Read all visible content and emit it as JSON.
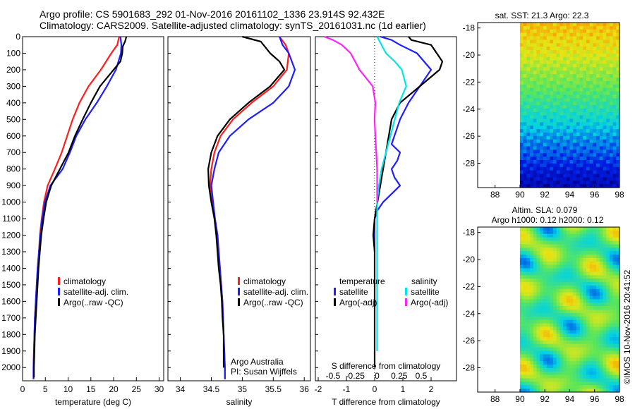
{
  "title": {
    "line1": "Argo profile: CS 5901683_292 01-Nov-2016 20161102_1336 23.914S 92.432E",
    "line2": "Climatology: CARS2009. Satellite-adjusted climatology: synTS_20161031.nc (1d earlier)"
  },
  "colors": {
    "climatology": "#ff1e1e",
    "satellite": "#1e1eff",
    "argo": "#000000",
    "sat_sal": "#00e5e5",
    "argo_sal": "#ff22ff"
  },
  "depth_ticks": [
    0,
    100,
    200,
    300,
    400,
    500,
    600,
    700,
    800,
    900,
    1000,
    1100,
    1200,
    1300,
    1400,
    1500,
    1600,
    1700,
    1800,
    1900,
    2000
  ],
  "chart_data": [
    {
      "type": "line",
      "xlabel": "temperature (deg C)",
      "xlim": [
        0,
        31
      ],
      "ylim": [
        2080,
        0
      ],
      "y_reversed": true,
      "xticks": [
        0,
        5,
        10,
        15,
        20,
        25,
        30
      ],
      "legend": [
        "climatology",
        "satellite-adj. clim.",
        "Argo(..raw -QC)"
      ],
      "series": [
        {
          "name": "climatology",
          "color_key": "climatology",
          "x": [
            21.2,
            20.8,
            19.5,
            17.2,
            14.5,
            12.5,
            11.0,
            9.8,
            8.6,
            7.1,
            5.5,
            4.7,
            4.2,
            3.8,
            3.6,
            3.3,
            3.1,
            2.9,
            2.7,
            2.6,
            2.5,
            2.4,
            2.4
          ],
          "y": [
            0,
            50,
            100,
            200,
            300,
            400,
            500,
            600,
            700,
            800,
            900,
            1000,
            1100,
            1200,
            1300,
            1400,
            1500,
            1600,
            1700,
            1800,
            1900,
            2000,
            2070
          ]
        },
        {
          "name": "satellite-adj. clim.",
          "color_key": "satellite",
          "x": [
            21.5,
            21.7,
            21.6,
            20.5,
            18.5,
            16.3,
            13.8,
            11.8,
            10.4,
            8.8,
            6.1,
            4.9,
            4.3,
            3.9,
            3.6,
            3.3,
            3.1,
            2.9,
            2.7,
            2.6,
            2.5,
            2.4,
            2.4
          ],
          "y": [
            0,
            50,
            100,
            200,
            300,
            400,
            500,
            600,
            700,
            800,
            900,
            1000,
            1100,
            1200,
            1300,
            1400,
            1500,
            1600,
            1700,
            1800,
            1900,
            2000,
            2070
          ]
        },
        {
          "name": "Argo(..raw -QC)",
          "color_key": "argo",
          "x": [
            22.8,
            22.5,
            22.0,
            21.9,
            21.5,
            20.0,
            17.0,
            15.0,
            13.2,
            11.5,
            10.1,
            8.2,
            6.3,
            5.2,
            4.6,
            4.1,
            3.8,
            3.5,
            3.3,
            3.1,
            2.9,
            2.7,
            2.6,
            2.5,
            2.5
          ],
          "y": [
            0,
            30,
            60,
            100,
            150,
            200,
            300,
            400,
            500,
            600,
            700,
            800,
            900,
            1000,
            1100,
            1200,
            1300,
            1400,
            1500,
            1600,
            1700,
            1800,
            1900,
            2000,
            2060
          ]
        }
      ]
    },
    {
      "type": "line",
      "xlabel": "salinity",
      "xlim": [
        33.8,
        36.1
      ],
      "ylim": [
        2080,
        0
      ],
      "y_reversed": true,
      "xticks": [
        34,
        34.5,
        35,
        35.5,
        36
      ],
      "legend": [
        "climatology",
        "satellite-adj. clim.",
        "Argo(..raw -QC)"
      ],
      "annotation": [
        "Argo Australia",
        "PI: Susan Wijffels"
      ],
      "series": [
        {
          "name": "climatology",
          "color_key": "climatology",
          "x": [
            35.6,
            35.7,
            35.75,
            35.72,
            35.5,
            35.15,
            34.85,
            34.65,
            34.55,
            34.5,
            34.48,
            34.52,
            34.56,
            34.6,
            34.62,
            34.64,
            34.66,
            34.68,
            34.69,
            34.7,
            34.71,
            34.72,
            34.72
          ],
          "y": [
            0,
            50,
            100,
            200,
            300,
            400,
            500,
            600,
            700,
            800,
            900,
            1000,
            1100,
            1200,
            1300,
            1400,
            1500,
            1600,
            1700,
            1800,
            1900,
            2000,
            2070
          ]
        },
        {
          "name": "satellite-adj. clim.",
          "color_key": "satellite",
          "x": [
            35.6,
            35.65,
            35.75,
            35.85,
            35.75,
            35.5,
            35.1,
            34.8,
            34.62,
            34.55,
            34.5,
            34.53,
            34.56,
            34.6,
            34.62,
            34.64,
            34.66,
            34.68,
            34.69,
            34.7,
            34.71,
            34.72,
            34.72
          ],
          "y": [
            0,
            50,
            100,
            200,
            300,
            400,
            500,
            600,
            700,
            800,
            900,
            1000,
            1100,
            1200,
            1300,
            1400,
            1500,
            1600,
            1700,
            1800,
            1900,
            2000,
            2070
          ]
        },
        {
          "name": "Argo(..raw -QC)",
          "color_key": "argo",
          "x": [
            35.0,
            35.3,
            35.45,
            35.6,
            35.68,
            35.45,
            35.1,
            34.8,
            34.6,
            34.5,
            34.45,
            34.46,
            34.5,
            34.55,
            34.58,
            34.6,
            34.62,
            34.65,
            34.67,
            34.68,
            34.7,
            34.7,
            34.7
          ],
          "y": [
            0,
            30,
            100,
            150,
            200,
            300,
            400,
            500,
            600,
            700,
            800,
            900,
            1000,
            1100,
            1200,
            1300,
            1400,
            1500,
            1600,
            1700,
            1800,
            1900,
            2000
          ]
        }
      ]
    },
    {
      "type": "line",
      "xlabel": "T difference from climatology",
      "xlabel_top": "S difference from climatology",
      "xlim_T": [
        -2.1,
        2.9
      ],
      "xticks_T": [
        -2,
        -1,
        0,
        1,
        2
      ],
      "xlim_S": [
        -0.7,
        0.9
      ],
      "xticks_S": [
        -0.5,
        -0.25,
        0,
        0.25,
        0.5
      ],
      "xticklabels_S": [
        "-0.5",
        "-0.25",
        "0",
        "0.25",
        "0.5"
      ],
      "ylim": [
        2080,
        0
      ],
      "y_reversed": true,
      "legend_T": {
        "heading": "temperature",
        "items": [
          "satellite",
          "Argo(-adj)"
        ]
      },
      "legend_S": {
        "heading": "salinity",
        "items": [
          "satellite",
          "Argo(-adj)"
        ]
      },
      "series": [
        {
          "name": "satellite",
          "group": "temperature",
          "axis": "T",
          "color_key": "satellite",
          "x": [
            0.2,
            0.6,
            0.9,
            1.5,
            2.0,
            1.6,
            1.2,
            0.9,
            0.7,
            0.6,
            0.9,
            0.8,
            0.6,
            0.7,
            0.9,
            0.6,
            0.3,
            0.1,
            0,
            0,
            0
          ],
          "y": [
            0,
            20,
            50,
            100,
            200,
            300,
            400,
            500,
            600,
            650,
            700,
            750,
            800,
            850,
            900,
            950,
            1000,
            1050,
            1100,
            1200,
            1300
          ]
        },
        {
          "name": "Argo(-adj)",
          "group": "temperature",
          "axis": "T",
          "color_key": "argo",
          "x": [
            1.2,
            1.3,
            2.0,
            2.4,
            2.3,
            1.6,
            0.9,
            0.6,
            0.5,
            0.4,
            0.3,
            0.2,
            0.1,
            0,
            -0.05,
            0,
            0,
            0,
            0,
            0
          ],
          "y": [
            0,
            20,
            50,
            150,
            200,
            300,
            400,
            500,
            600,
            700,
            800,
            900,
            1000,
            1100,
            1200,
            1300,
            1400,
            1600,
            1800,
            2000
          ]
        },
        {
          "name": "satellite",
          "group": "salinity",
          "axis": "S",
          "color_key": "sat_sal",
          "x": [
            0,
            0.1,
            0.2,
            0.28,
            0.33,
            0.25,
            0.2,
            0.15,
            0.1,
            0.05,
            0.02,
            0,
            0,
            0,
            0,
            0
          ],
          "y": [
            0,
            100,
            150,
            200,
            300,
            400,
            500,
            600,
            700,
            800,
            900,
            1000,
            1100,
            1200,
            1500,
            1900
          ]
        },
        {
          "name": "Argo(-adj)",
          "group": "salinity",
          "axis": "S",
          "color_key": "argo_sal",
          "x": [
            -0.6,
            -0.5,
            -0.4,
            -0.3,
            -0.25,
            -0.2,
            -0.05,
            -0.02,
            -0.03,
            -0.02,
            -0.01,
            0,
            0,
            0
          ],
          "y": [
            0,
            20,
            50,
            100,
            150,
            200,
            300,
            400,
            500,
            600,
            700,
            800,
            900,
            1000
          ]
        }
      ]
    },
    {
      "type": "heatmap",
      "title": "sat. SST: 21.3 Argo: 22.3",
      "xlim": [
        86.6,
        98
      ],
      "ylim": [
        -29.8,
        -17.6
      ],
      "xticks": [
        88,
        90,
        92,
        94,
        96,
        98
      ],
      "yticks": [
        -18,
        -20,
        -22,
        -24,
        -26,
        -28
      ],
      "data_lon_start": 90,
      "rows_label": "SST rows top to bottom",
      "rows": [
        21.6,
        21.4,
        21.2,
        20.8,
        20.4,
        20.0,
        19.6,
        19.2,
        18.8,
        18.5,
        18.1,
        17.8
      ],
      "vmin": 17.5,
      "vmax": 22.5
    },
    {
      "type": "heatmap",
      "title": "Altim. SLA: 0.079",
      "subtitle": "Argo h1000: 0.12 h2000: 0.12",
      "xlim": [
        86.6,
        98
      ],
      "ylim": [
        -29.8,
        -17.6
      ],
      "xticks": [
        88,
        90,
        92,
        94,
        96,
        98
      ],
      "yticks": [
        -18,
        -20,
        -22,
        -24,
        -26,
        -28
      ],
      "data_lon_start": 90,
      "vmin": -0.1,
      "vmax": 0.2
    }
  ],
  "footer": "©IMOS 10-Nov-2016 20:41:52"
}
